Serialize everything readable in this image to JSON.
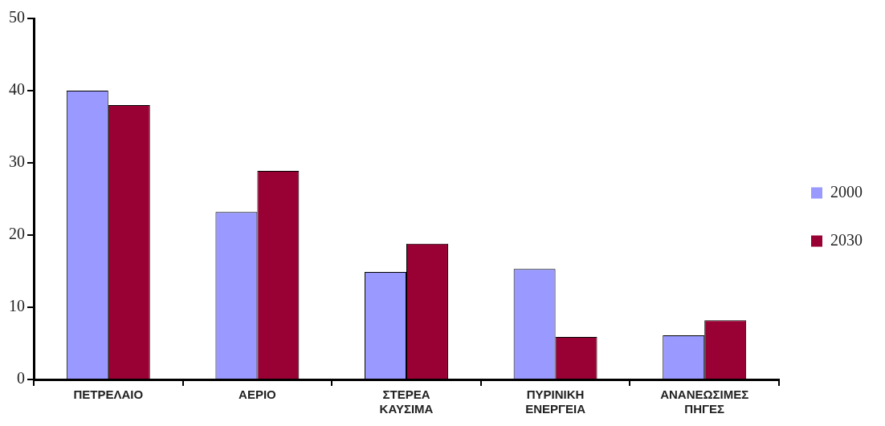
{
  "chart_data": {
    "type": "bar",
    "categories": [
      "ΠΕΤΡΕΛΑΙΟ",
      "ΑΕΡΙΟ",
      "ΣΤΕΡΕΑ ΚΑΥΣΙΜΑ",
      "ΠΥΡΙΝΙΚΗ ΕΝΕΡΓΕΙΑ",
      "ΑΝΑΝΕΩΣΙΜΕΣ ΠΗΓΕΣ"
    ],
    "series": [
      {
        "name": "2000",
        "color": "#9999ff",
        "values": [
          40,
          23.2,
          14.9,
          15.3,
          6.1
        ]
      },
      {
        "name": "2030",
        "color": "#990033",
        "values": [
          38,
          28.9,
          18.8,
          5.9,
          8.2
        ]
      }
    ],
    "ylim": [
      0,
      50
    ],
    "yticks": [
      0,
      10,
      20,
      30,
      40,
      50
    ],
    "grid": false,
    "legend": "right"
  }
}
